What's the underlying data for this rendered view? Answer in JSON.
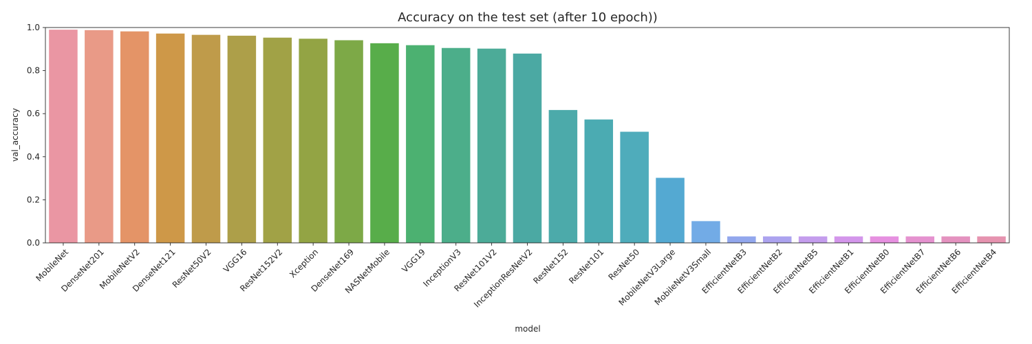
{
  "chart_data": {
    "type": "bar",
    "title": "Accuracy on the test set (after 10 epoch))",
    "xlabel": "model",
    "ylabel": "val_accuracy",
    "ylim": [
      0,
      1.0
    ],
    "yticks": [
      "0.0",
      "0.2",
      "0.4",
      "0.6",
      "0.8",
      "1.0"
    ],
    "grid": false,
    "categories": [
      "MobileNet",
      "DenseNet201",
      "MobileNetV2",
      "DenseNet121",
      "ResNet50V2",
      "VGG16",
      "ResNet152V2",
      "Xception",
      "DenseNet169",
      "NASNetMobile",
      "VGG19",
      "InceptionV3",
      "ResNet101V2",
      "InceptionResNetV2",
      "ResNet152",
      "ResNet101",
      "ResNet50",
      "MobileNetV3Large",
      "MobileNetV3Small",
      "EfficientNetB3",
      "EfficientNetB2",
      "EfficientNetB5",
      "EfficientNetB1",
      "EfficientNetB0",
      "EfficientNetB7",
      "EfficientNetB6",
      "EfficientNetB4"
    ],
    "values": [
      0.99,
      0.988,
      0.982,
      0.972,
      0.966,
      0.962,
      0.953,
      0.948,
      0.941,
      0.927,
      0.918,
      0.905,
      0.902,
      0.879,
      0.617,
      0.573,
      0.516,
      0.302,
      0.101,
      0.03,
      0.03,
      0.03,
      0.03,
      0.03,
      0.03,
      0.03,
      0.03
    ],
    "colors": [
      "#ea96a3",
      "#e99a87",
      "#e49467",
      "#ce9848",
      "#bf9b4a",
      "#ad9f49",
      "#a1a246",
      "#93a444",
      "#7da947",
      "#58ad4a",
      "#4cb171",
      "#4cae8a",
      "#4cab98",
      "#4ba9a3",
      "#4caaaa",
      "#4babb2",
      "#4facbb",
      "#54a9d2",
      "#72abe6",
      "#92a7ed",
      "#aca3ef",
      "#c49ded",
      "#d396eb",
      "#e690e0",
      "#e592cf",
      "#e492bf",
      "#e693af"
    ]
  }
}
